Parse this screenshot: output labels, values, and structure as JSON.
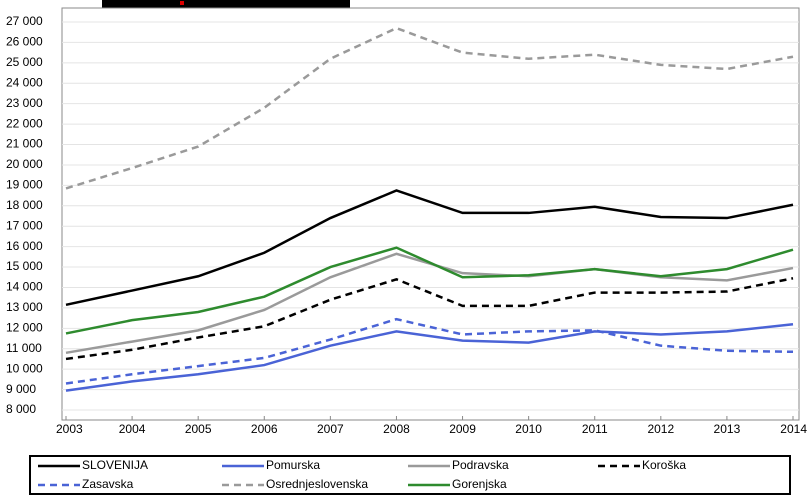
{
  "chart_data": {
    "type": "line",
    "x": [
      2003,
      2004,
      2005,
      2006,
      2007,
      2008,
      2009,
      2010,
      2011,
      2012,
      2013,
      2014
    ],
    "xlim": [
      2003,
      2014
    ],
    "xticks": [
      2003,
      2004,
      2005,
      2006,
      2007,
      2008,
      2009,
      2010,
      2011,
      2012,
      2013,
      2014
    ],
    "ylim": [
      8000,
      27000
    ],
    "yticks": [
      {
        "value": 8000,
        "label": "8 000"
      },
      {
        "value": 9000,
        "label": "9 000"
      },
      {
        "value": 10000,
        "label": "10 000"
      },
      {
        "value": 11000,
        "label": "11 000"
      },
      {
        "value": 12000,
        "label": "12 000"
      },
      {
        "value": 13000,
        "label": "13 000"
      },
      {
        "value": 14000,
        "label": "14 000"
      },
      {
        "value": 15000,
        "label": "15 000"
      },
      {
        "value": 16000,
        "label": "16 000"
      },
      {
        "value": 17000,
        "label": "17 000"
      },
      {
        "value": 18000,
        "label": "18 000"
      },
      {
        "value": 19000,
        "label": "19 000"
      },
      {
        "value": 20000,
        "label": "20 000"
      },
      {
        "value": 21000,
        "label": "21 000"
      },
      {
        "value": 22000,
        "label": "22 000"
      },
      {
        "value": 23000,
        "label": "23 000"
      },
      {
        "value": 24000,
        "label": "24 000"
      },
      {
        "value": 25000,
        "label": "25 000"
      },
      {
        "value": 26000,
        "label": "26 000"
      },
      {
        "value": 27000,
        "label": "27 000"
      }
    ],
    "grid": true,
    "series": [
      {
        "name": "SLOVENIJA",
        "color": "#000000",
        "line_style": "solid",
        "values": [
          13150,
          13850,
          14550,
          15700,
          17400,
          18750,
          17650,
          17650,
          17950,
          17450,
          17400,
          18050
        ]
      },
      {
        "name": "Pomurska",
        "color": "#4a63d6",
        "line_style": "solid",
        "values": [
          8950,
          9400,
          9750,
          10200,
          11150,
          11850,
          11400,
          11300,
          11850,
          11700,
          11850,
          12200
        ]
      },
      {
        "name": "Podravska",
        "color": "#9a9a9a",
        "line_style": "solid",
        "values": [
          10800,
          11350,
          11900,
          12900,
          14500,
          15650,
          14700,
          14550,
          14900,
          14500,
          14350,
          14950
        ]
      },
      {
        "name": "Koroška",
        "color": "#000000",
        "line_style": "dashed",
        "values": [
          10500,
          10950,
          11550,
          12100,
          13400,
          14400,
          13100,
          13100,
          13750,
          13750,
          13800,
          14450
        ]
      },
      {
        "name": "Zasavska",
        "color": "#4a63d6",
        "line_style": "dashed",
        "values": [
          9300,
          9750,
          10150,
          10550,
          11450,
          12450,
          11700,
          11850,
          11900,
          11150,
          10900,
          10850
        ]
      },
      {
        "name": "Osrednjeslovenska",
        "color": "#9a9a9a",
        "line_style": "dashed",
        "values": [
          18850,
          19850,
          20900,
          22800,
          25200,
          26700,
          25500,
          25200,
          25400,
          24900,
          24700,
          25300
        ]
      },
      {
        "name": "Gorenjska",
        "color": "#2e8b2e",
        "line_style": "solid",
        "values": [
          11750,
          12400,
          12800,
          13550,
          15000,
          15950,
          14500,
          14600,
          14900,
          14550,
          14900,
          15850
        ]
      }
    ]
  }
}
